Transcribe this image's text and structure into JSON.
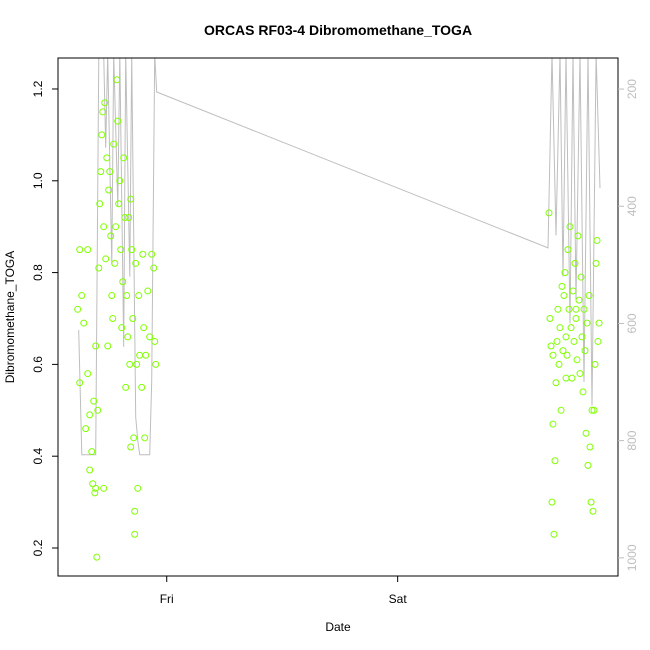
{
  "chart_data": {
    "type": "scatter",
    "title": "ORCAS RF03-4 Dibromomethane_TOGA",
    "xlabel": "Date",
    "ylabel": "Dibromomethane_TOGA",
    "color": "#80ff00",
    "x": [
      -9.25,
      -9.04,
      -9.04,
      -8.83,
      -8.62,
      -8.42,
      -8.21,
      -8.21,
      -8.0,
      -8.0,
      -7.79,
      -7.69,
      -7.58,
      -7.48,
      -7.38,
      -7.27,
      -7.17,
      -7.06,
      -6.96,
      -6.86,
      -6.75,
      -6.65,
      -6.55,
      -6.44,
      -6.34,
      -6.23,
      -6.13,
      -6.03,
      -5.92,
      -5.82,
      -5.71,
      -5.61,
      -5.51,
      -5.4,
      -5.3,
      -5.19,
      -5.09,
      -4.99,
      -4.88,
      -4.78,
      -4.68,
      -4.57,
      -4.47,
      -4.36,
      -4.26,
      -4.16,
      -4.05,
      -3.95,
      -3.84,
      -3.74,
      -3.64,
      -3.53,
      -3.43,
      -3.33,
      -3.22,
      -3.12,
      -3.01,
      -2.91,
      -2.81,
      -2.6,
      -2.49,
      -2.39,
      -2.29,
      -2.18,
      -1.97,
      -1.77,
      -1.56,
      -1.35,
      -1.25,
      -1.14,
      -3.33,
      -3.74,
      -6.55,
      -7.38,
      39.73,
      39.83,
      39.94,
      40.04,
      40.14,
      40.25,
      40.35,
      40.46,
      40.56,
      40.66,
      40.77,
      40.87,
      40.98,
      41.08,
      41.18,
      41.29,
      41.39,
      41.5,
      41.6,
      41.7,
      41.81,
      41.91,
      42.02,
      42.12,
      42.22,
      42.33,
      42.43,
      42.54,
      42.64,
      42.74,
      42.85,
      42.95,
      43.06,
      43.16,
      43.26,
      43.37,
      43.47,
      43.58,
      43.68,
      43.78,
      43.89,
      43.99,
      44.1,
      44.2,
      44.3,
      44.41,
      44.51,
      44.62,
      44.72,
      44.82,
      44.93,
      40.14,
      41.5,
      42.54
    ],
    "values": [
      0.72,
      0.85,
      0.56,
      0.75,
      0.69,
      0.46,
      0.85,
      0.58,
      0.49,
      0.37,
      0.41,
      0.34,
      0.52,
      0.32,
      0.64,
      0.18,
      0.5,
      0.81,
      0.95,
      1.02,
      1.1,
      1.15,
      0.9,
      1.17,
      0.83,
      1.05,
      0.64,
      0.98,
      1.02,
      0.88,
      0.75,
      0.7,
      1.08,
      0.82,
      0.9,
      1.22,
      1.13,
      0.95,
      1.0,
      0.85,
      0.68,
      0.78,
      1.05,
      0.92,
      0.55,
      0.75,
      0.66,
      0.92,
      0.6,
      0.96,
      0.85,
      0.7,
      0.44,
      0.28,
      0.82,
      0.6,
      0.33,
      0.75,
      0.62,
      0.55,
      0.84,
      0.68,
      0.44,
      0.62,
      0.76,
      0.66,
      0.84,
      0.81,
      0.65,
      0.6,
      0.23,
      0.42,
      0.33,
      0.33,
      0.93,
      0.7,
      0.64,
      0.3,
      0.47,
      0.23,
      0.39,
      0.56,
      0.65,
      0.72,
      0.6,
      0.68,
      0.5,
      0.77,
      0.63,
      0.75,
      0.8,
      0.66,
      0.62,
      0.85,
      0.72,
      0.9,
      0.68,
      0.57,
      0.76,
      0.65,
      0.82,
      0.7,
      0.61,
      0.88,
      0.74,
      0.58,
      0.79,
      0.66,
      0.54,
      0.72,
      0.63,
      0.45,
      0.69,
      0.38,
      0.75,
      0.42,
      0.3,
      0.5,
      0.28,
      0.5,
      0.6,
      0.82,
      0.87,
      0.65,
      0.69,
      0.62,
      0.57,
      0.72
    ],
    "line": {
      "color": "#bebebe",
      "axis": "y2",
      "x": [
        -9.15,
        -8.83,
        -7.38,
        -7.06,
        -6.55,
        -6.34,
        -6.13,
        -5.71,
        -5.51,
        -5.09,
        -4.88,
        -4.47,
        -4.26,
        -3.84,
        -3.64,
        -3.22,
        -3.01,
        -2.81,
        -1.77,
        -1.56,
        -1.25,
        -1.04,
        39.62,
        40.04,
        40.46,
        40.87,
        41.18,
        41.5,
        41.91,
        42.22,
        42.54,
        42.95,
        43.37,
        43.78,
        44.2,
        44.62,
        45.03
      ],
      "values": [
        611,
        824,
        824,
        140,
        140,
        300,
        140,
        500,
        140,
        400,
        140,
        640,
        140,
        520,
        140,
        760,
        800,
        824,
        824,
        700,
        140,
        205,
        471,
        140,
        450,
        140,
        520,
        140,
        600,
        140,
        560,
        140,
        700,
        140,
        740,
        140,
        369
      ]
    },
    "xlim": [
      -11.3,
      46.9
    ],
    "xticks": [
      {
        "value": 0,
        "label": "Fri"
      },
      {
        "value": 24,
        "label": "Sat"
      }
    ],
    "ylim": [
      0.139,
      1.2675
    ],
    "yticks": [
      0.2,
      0.4,
      0.6,
      0.8,
      {
        "value": 1,
        "label": "1.0"
      },
      1.2
    ],
    "y2lim": [
      1031,
      147
    ],
    "y2ticks": [
      200,
      400,
      600,
      800,
      1000
    ]
  }
}
